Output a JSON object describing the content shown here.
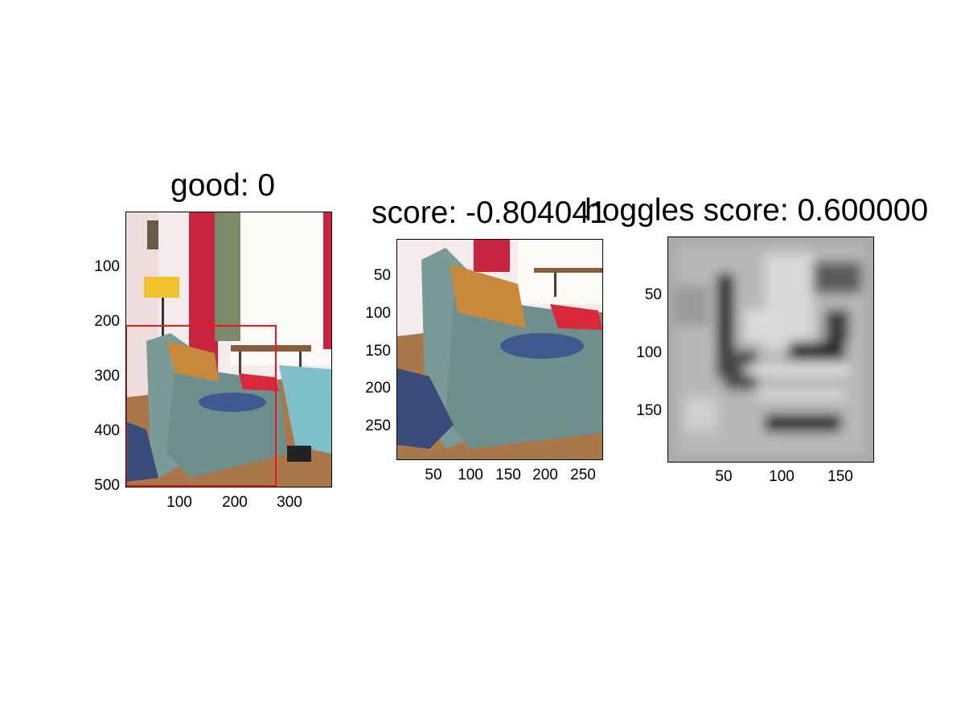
{
  "panels": [
    {
      "title": "good: 0",
      "yticks": [
        "100",
        "200",
        "300",
        "400",
        "500"
      ],
      "xticks": [
        "100",
        "200",
        "300"
      ],
      "bbox_color": "#e41a1c"
    },
    {
      "title": "score: -0.804041",
      "yticks": [
        "50",
        "100",
        "150",
        "200",
        "250"
      ],
      "xticks": [
        "50",
        "100",
        "150",
        "200",
        "250"
      ]
    },
    {
      "title": "hoggles score: 0.600000",
      "yticks": [
        "50",
        "100",
        "150"
      ],
      "xticks": [
        "50",
        "100",
        "150"
      ]
    }
  ],
  "colors": {
    "sofa": "#7a9a98",
    "pillow_blue": "#3f5a8e",
    "pillow_red": "#d8283a",
    "curtain_red": "#c8233f",
    "lamp_yellow": "#f2c12e",
    "floor": "#a8784a"
  }
}
